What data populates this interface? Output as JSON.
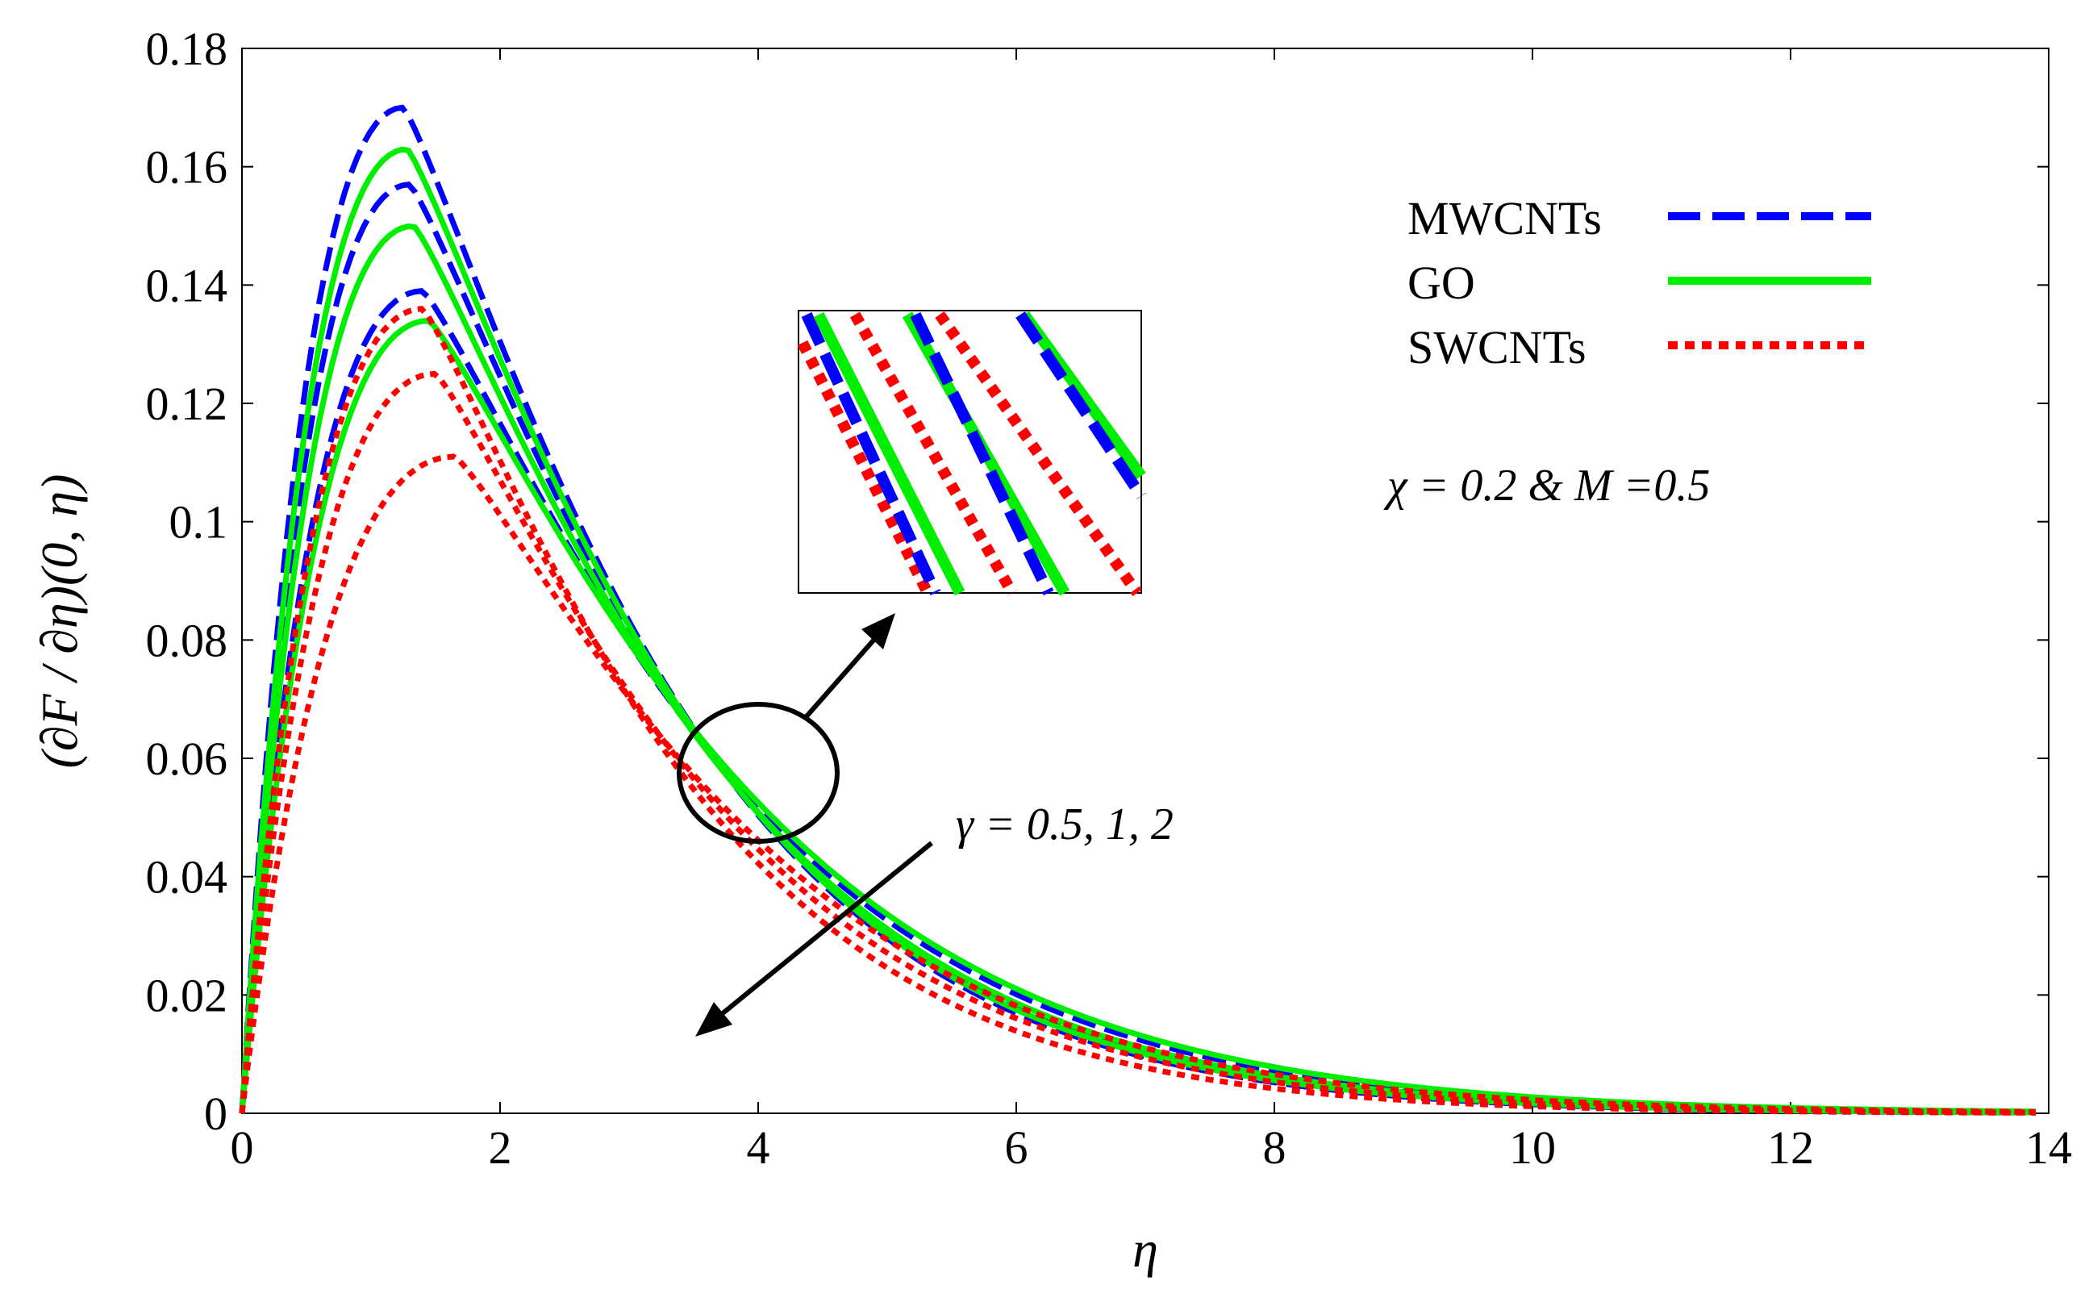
{
  "chart_data": {
    "type": "line",
    "xlabel": "η",
    "ylabel": "(∂F / ∂η)(0, η)",
    "xlim": [
      0,
      14
    ],
    "ylim": [
      0,
      0.18
    ],
    "xticks": [
      "0",
      "2",
      "4",
      "6",
      "8",
      "10",
      "12",
      "14"
    ],
    "yticks": [
      "0",
      "0.02",
      "0.04",
      "0.06",
      "0.08",
      "0.1",
      "0.12",
      "0.14",
      "0.16",
      "0.18"
    ],
    "legend": [
      {
        "name": "MWCNTs",
        "style": "dashed",
        "color": "#0000ff"
      },
      {
        "name": "GO",
        "style": "solid",
        "color": "#00ee00"
      },
      {
        "name": "SWCNTs",
        "style": "dotted",
        "color": "#ff0000"
      }
    ],
    "annotations": {
      "params": "χ = 0.2 & M =0.5",
      "gamma": "γ = 0.5, 1, 2"
    },
    "series": [
      {
        "name": "MWCNTs γ=0.5",
        "material": "MWCNTs",
        "peak": 0.17,
        "peak_x": 1.25,
        "decay": 0.42
      },
      {
        "name": "MWCNTs γ=1",
        "material": "MWCNTs",
        "peak": 0.157,
        "peak_x": 1.3,
        "decay": 0.4
      },
      {
        "name": "MWCNTs γ=2",
        "material": "MWCNTs",
        "peak": 0.139,
        "peak_x": 1.4,
        "decay": 0.37
      },
      {
        "name": "GO γ=0.5",
        "material": "GO",
        "peak": 0.163,
        "peak_x": 1.28,
        "decay": 0.41
      },
      {
        "name": "GO γ=1",
        "material": "GO",
        "peak": 0.15,
        "peak_x": 1.33,
        "decay": 0.39
      },
      {
        "name": "GO γ=2",
        "material": "GO",
        "peak": 0.134,
        "peak_x": 1.45,
        "decay": 0.36
      },
      {
        "name": "SWCNTs γ=0.5",
        "material": "SWCNTs",
        "peak": 0.136,
        "peak_x": 1.4,
        "decay": 0.43
      },
      {
        "name": "SWCNTs γ=1",
        "material": "SWCNTs",
        "peak": 0.125,
        "peak_x": 1.5,
        "decay": 0.4
      },
      {
        "name": "SWCNTs γ=2",
        "material": "SWCNTs",
        "peak": 0.111,
        "peak_x": 1.65,
        "decay": 0.37
      }
    ]
  }
}
